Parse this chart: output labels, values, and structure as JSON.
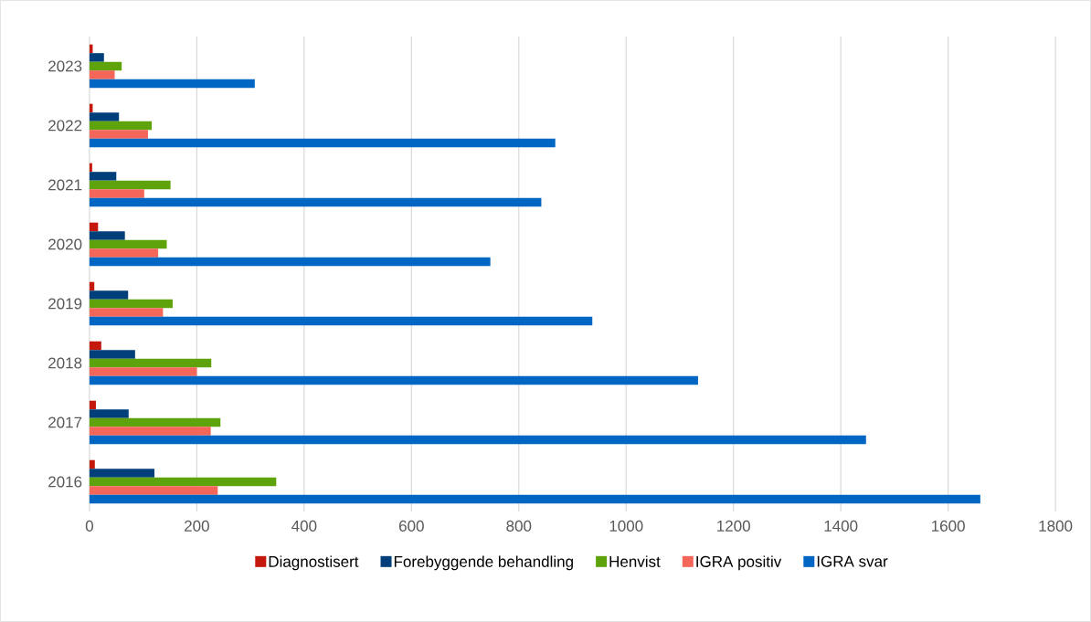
{
  "chart_data": {
    "type": "bar",
    "orientation": "horizontal",
    "categories": [
      "2023",
      "2022",
      "2021",
      "2020",
      "2019",
      "2018",
      "2017",
      "2016"
    ],
    "series": [
      {
        "name": "Diagnostisert",
        "color": "#c4180c",
        "values": [
          6,
          6,
          5,
          16,
          9,
          22,
          12,
          10
        ]
      },
      {
        "name": "Forebyggende behandling",
        "color": "#003f7a",
        "values": [
          27,
          55,
          50,
          66,
          72,
          85,
          73,
          121
        ]
      },
      {
        "name": "Henvist",
        "color": "#5fa30c",
        "values": [
          60,
          116,
          151,
          144,
          155,
          227,
          244,
          348
        ]
      },
      {
        "name": "IGRA positiv",
        "color": "#f4665a",
        "values": [
          47,
          109,
          102,
          128,
          137,
          200,
          226,
          239
        ]
      },
      {
        "name": "IGRA svar",
        "color": "#0066c4",
        "values": [
          308,
          868,
          842,
          747,
          937,
          1134,
          1447,
          1660
        ]
      }
    ],
    "xlim": [
      0,
      1800
    ],
    "xticks": [
      0,
      200,
      400,
      600,
      800,
      1000,
      1200,
      1400,
      1600,
      1800
    ],
    "grid": "x",
    "legend": "bottom"
  }
}
